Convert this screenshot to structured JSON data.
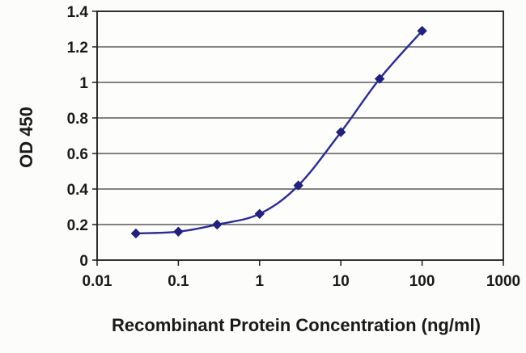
{
  "chart_data": {
    "type": "line",
    "title": "",
    "xlabel": "Recombinant Protein Concentration (ng/ml)",
    "ylabel": "OD 450",
    "x_scale": "log",
    "xlim": [
      0.01,
      1000
    ],
    "ylim": [
      0,
      1.4
    ],
    "x_ticks": [
      0.01,
      0.1,
      1,
      10,
      100,
      1000
    ],
    "x_tick_labels": [
      "0.01",
      "0.1",
      "1",
      "10",
      "100",
      "1000"
    ],
    "y_ticks": [
      0,
      0.2,
      0.4,
      0.6,
      0.8,
      1,
      1.2,
      1.4
    ],
    "y_tick_labels": [
      "0",
      "0.2",
      "0.4",
      "0.6",
      "0.8",
      "1",
      "1.2",
      "1.4"
    ],
    "grid": "horizontal",
    "legend": "none",
    "series": [
      {
        "name": "OD 450",
        "marker": "diamond",
        "x": [
          0.03,
          0.1,
          0.3,
          1,
          3,
          10,
          30,
          100
        ],
        "y": [
          0.15,
          0.16,
          0.2,
          0.26,
          0.42,
          0.72,
          1.02,
          1.29
        ]
      }
    ],
    "colors": {
      "line": "#2b2b9a",
      "marker": "#22227e",
      "grid": "#3a3a3a",
      "axis": "#1c1c1c",
      "text": "#1a1a1a",
      "background": "#fdfdfb"
    }
  }
}
